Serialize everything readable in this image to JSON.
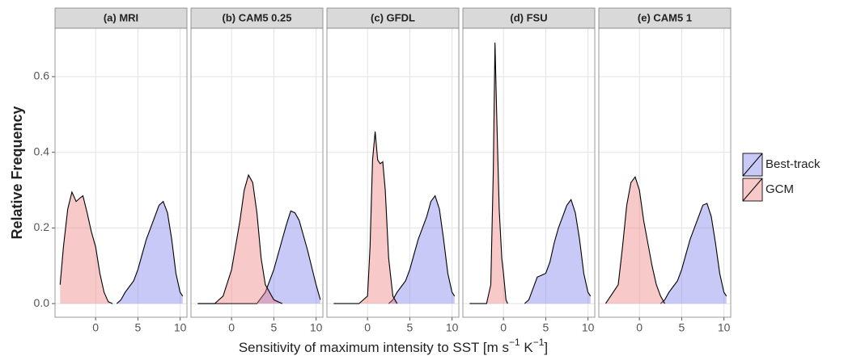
{
  "chart_data": [
    {
      "type": "area",
      "title": "(a) MRI",
      "y_label": "Relative Frequency",
      "x_label": [
        "Sensitivity of maximum intensity to SST [m s",
        "−1",
        " K",
        "−1",
        "]"
      ],
      "legend": "right",
      "alpha": 0.4,
      "grid": true,
      "xlim": [
        -4.8,
        10.8
      ],
      "xticks": [
        0,
        5,
        10
      ],
      "ylim": [
        -0.036,
        0.728
      ],
      "yticks": [
        0.0,
        0.2,
        0.4,
        0.6
      ],
      "series": [
        {
          "name": "Best-track",
          "color": "#7878ee",
          "x": [
            2.5,
            3,
            3.5,
            4,
            4.5,
            5,
            5.5,
            6,
            6.5,
            7,
            7.5,
            8,
            8.5,
            9,
            9.5,
            10,
            10.3
          ],
          "values": [
            0,
            0.01,
            0.03,
            0.045,
            0.06,
            0.09,
            0.13,
            0.17,
            0.2,
            0.23,
            0.26,
            0.27,
            0.24,
            0.17,
            0.08,
            0.03,
            0.02
          ]
        },
        {
          "name": "GCM",
          "color": "#ee7878",
          "x": [
            -4.2,
            -3.8,
            -3.3,
            -2.8,
            -2.3,
            -1.8,
            -1.5,
            -1,
            -0.5,
            0,
            0.5,
            1,
            1.5,
            2
          ],
          "values": [
            0.05,
            0.15,
            0.25,
            0.295,
            0.27,
            0.28,
            0.285,
            0.24,
            0.19,
            0.15,
            0.08,
            0.03,
            0.005,
            0
          ]
        }
      ]
    },
    {
      "type": "area",
      "title": "(b) CAM5 0.25",
      "alpha": 0.4,
      "grid": true,
      "xlim": [
        -4.8,
        10.8
      ],
      "xticks": [
        0,
        5,
        10
      ],
      "ylim": [
        -0.036,
        0.728
      ],
      "yticks": [
        0.0,
        0.2,
        0.4,
        0.6
      ],
      "series": [
        {
          "name": "Best-track",
          "color": "#7878ee",
          "x": [
            -4,
            3,
            4,
            5,
            6,
            6.5,
            7,
            7.5,
            8,
            9,
            10,
            10.5
          ],
          "values": [
            0,
            0,
            0.03,
            0.09,
            0.17,
            0.21,
            0.245,
            0.24,
            0.22,
            0.14,
            0.05,
            0.01
          ]
        },
        {
          "name": "GCM",
          "color": "#ee7878",
          "x": [
            -4,
            -2,
            -1,
            0,
            1,
            1.5,
            2,
            2.5,
            3,
            3.5,
            4,
            5,
            6
          ],
          "values": [
            0,
            0,
            0.02,
            0.09,
            0.22,
            0.3,
            0.34,
            0.32,
            0.24,
            0.12,
            0.05,
            0.01,
            0
          ]
        }
      ]
    },
    {
      "type": "area",
      "title": "(c) GFDL",
      "alpha": 0.4,
      "grid": true,
      "xlim": [
        -4.8,
        10.8
      ],
      "xticks": [
        0,
        5,
        10
      ],
      "ylim": [
        -0.036,
        0.728
      ],
      "yticks": [
        0.0,
        0.2,
        0.4,
        0.6
      ],
      "series": [
        {
          "name": "Best-track",
          "color": "#7878ee",
          "x": [
            2.5,
            3,
            3.5,
            4,
            4.5,
            5,
            5.5,
            6,
            6.5,
            7,
            7.5,
            8,
            8.5,
            9,
            9.5,
            10,
            10.3
          ],
          "values": [
            0,
            0.01,
            0.03,
            0.045,
            0.06,
            0.09,
            0.13,
            0.17,
            0.2,
            0.23,
            0.27,
            0.285,
            0.25,
            0.17,
            0.08,
            0.03,
            0.02
          ]
        },
        {
          "name": "GCM",
          "color": "#ee7878",
          "x": [
            -4,
            -1,
            0,
            0.3,
            0.6,
            0.9,
            1.2,
            1.5,
            1.8,
            2.1,
            2.5,
            3,
            3.5
          ],
          "values": [
            0,
            0,
            0.02,
            0.15,
            0.38,
            0.455,
            0.38,
            0.37,
            0.375,
            0.3,
            0.12,
            0.02,
            0
          ]
        }
      ]
    },
    {
      "type": "area",
      "title": "(d) FSU",
      "alpha": 0.4,
      "grid": true,
      "xlim": [
        -4.8,
        10.8
      ],
      "xticks": [
        0,
        5,
        10
      ],
      "ylim": [
        -0.036,
        0.728
      ],
      "yticks": [
        0.0,
        0.2,
        0.4,
        0.6
      ],
      "series": [
        {
          "name": "Best-track",
          "color": "#7878ee",
          "x": [
            2.5,
            3,
            3.5,
            4,
            4.5,
            5,
            5.5,
            6,
            6.5,
            7,
            7.5,
            8,
            8.5,
            9,
            9.5,
            10,
            10.3
          ],
          "values": [
            0,
            0.01,
            0.04,
            0.07,
            0.075,
            0.08,
            0.11,
            0.16,
            0.2,
            0.23,
            0.26,
            0.275,
            0.24,
            0.17,
            0.08,
            0.03,
            0.02
          ]
        },
        {
          "name": "GCM",
          "color": "#ee7878",
          "x": [
            -4,
            -2,
            -1.5,
            -1.2,
            -1,
            -0.8,
            -0.5,
            -0.2,
            0,
            0.3,
            0.5
          ],
          "values": [
            0,
            0,
            0.05,
            0.35,
            0.69,
            0.5,
            0.25,
            0.12,
            0.08,
            0.01,
            0
          ]
        }
      ]
    },
    {
      "type": "area",
      "title": "(e) CAM5 1",
      "alpha": 0.4,
      "grid": true,
      "xlim": [
        -4.8,
        10.8
      ],
      "xticks": [
        0,
        5,
        10
      ],
      "ylim": [
        -0.036,
        0.728
      ],
      "yticks": [
        0.0,
        0.2,
        0.4,
        0.6
      ],
      "series": [
        {
          "name": "Best-track",
          "color": "#7878ee",
          "x": [
            2.5,
            3,
            3.5,
            4,
            4.5,
            5,
            5.5,
            6,
            6.5,
            7,
            7.5,
            8,
            8.5,
            9,
            9.5,
            10,
            10.3
          ],
          "values": [
            0,
            0.01,
            0.03,
            0.045,
            0.06,
            0.09,
            0.13,
            0.17,
            0.2,
            0.23,
            0.26,
            0.265,
            0.23,
            0.16,
            0.08,
            0.03,
            0.02
          ]
        },
        {
          "name": "GCM",
          "color": "#ee7878",
          "x": [
            -4,
            -2.5,
            -2,
            -1.5,
            -1,
            -0.5,
            0,
            0.5,
            1,
            1.5,
            2,
            2.5,
            3
          ],
          "values": [
            0,
            0.05,
            0.15,
            0.26,
            0.32,
            0.335,
            0.3,
            0.22,
            0.16,
            0.1,
            0.05,
            0.02,
            0
          ]
        }
      ]
    }
  ]
}
